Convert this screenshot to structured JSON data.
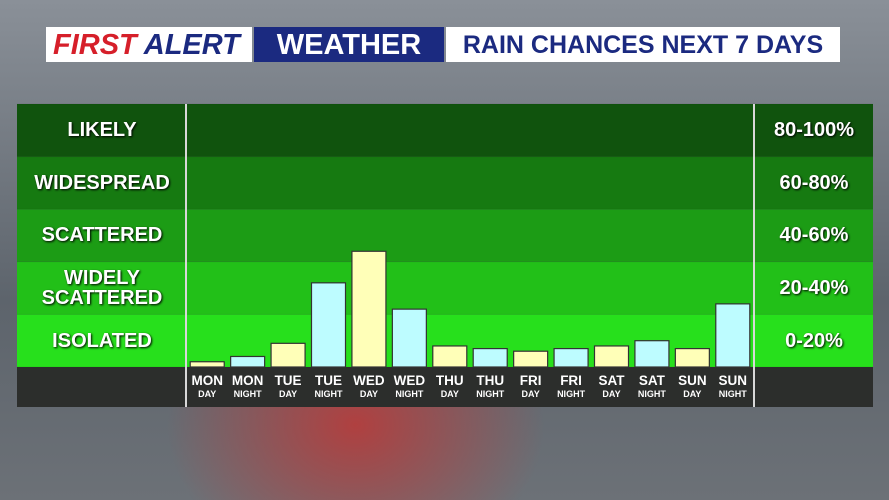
{
  "header": {
    "brand_first": "FIRST",
    "brand_alert": "ALERT",
    "brand_weather": "WEATHER",
    "headline": "RAIN CHANCES NEXT 7 DAYS"
  },
  "chart_data": {
    "type": "bar",
    "categories": [
      "MON",
      "MON",
      "TUE",
      "TUE",
      "WED",
      "WED",
      "THU",
      "THU",
      "FRI",
      "FRI",
      "SAT",
      "SAT",
      "SUN",
      "SUN"
    ],
    "periods": [
      "DAY",
      "NIGHT",
      "DAY",
      "NIGHT",
      "DAY",
      "NIGHT",
      "DAY",
      "NIGHT",
      "DAY",
      "NIGHT",
      "DAY",
      "NIGHT",
      "DAY",
      "NIGHT"
    ],
    "values": [
      2,
      4,
      9,
      32,
      44,
      22,
      8,
      7,
      6,
      7,
      8,
      10,
      7,
      24
    ],
    "bar_colors": [
      "#ffffb8",
      "#bdfcff",
      "#ffffb8",
      "#bdfcff",
      "#ffffb8",
      "#bdfcff",
      "#ffffb8",
      "#bdfcff",
      "#ffffb8",
      "#bdfcff",
      "#ffffb8",
      "#bdfcff",
      "#ffffb8",
      "#bdfcff"
    ],
    "ylim": [
      0,
      100
    ],
    "yticks": [
      0,
      20,
      40,
      60,
      80,
      100
    ],
    "bands": [
      {
        "label": "ISOLATED",
        "range": "0-20%",
        "color": "#27e01c"
      },
      {
        "label": "WIDELY SCATTERED",
        "range": "20-40%",
        "color": "#22c018"
      },
      {
        "label": "SCATTERED",
        "range": "40-60%",
        "color": "#1c9c15"
      },
      {
        "label": "WIDESPREAD",
        "range": "60-80%",
        "color": "#167a11"
      },
      {
        "label": "LIKELY",
        "range": "80-100%",
        "color": "#10530d"
      }
    ]
  }
}
